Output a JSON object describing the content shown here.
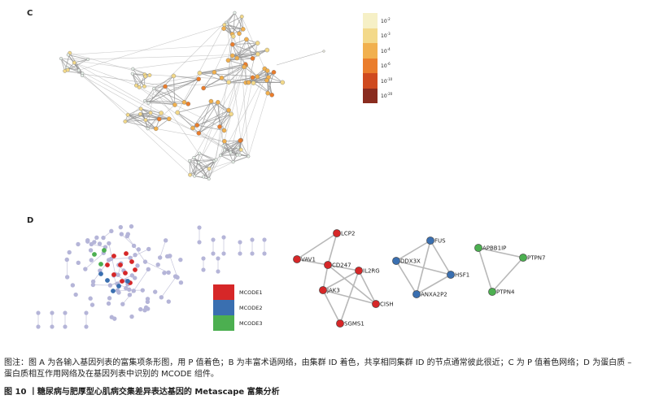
{
  "panels": {
    "c": {
      "label": "C",
      "legend": [
        {
          "base": "10",
          "exp": "-2",
          "color": "#f6f0c6"
        },
        {
          "base": "10",
          "exp": "-3",
          "color": "#f3d98a"
        },
        {
          "base": "10",
          "exp": "-4",
          "color": "#f1b04e"
        },
        {
          "base": "10",
          "exp": "-6",
          "color": "#ea7d2c"
        },
        {
          "base": "10",
          "exp": "-10",
          "color": "#cf4a1f"
        },
        {
          "base": "10",
          "exp": "-20",
          "color": "#8a2c1f"
        }
      ]
    },
    "d": {
      "label": "D",
      "legend": [
        {
          "label": "MCODE1",
          "color": "#d62728"
        },
        {
          "label": "MCODE2",
          "color": "#3a6fb0"
        },
        {
          "label": "MCODE3",
          "color": "#4caf50"
        }
      ],
      "clusters": [
        {
          "name": "MCODE1",
          "color": "#d62728",
          "nodes": [
            "LCP2",
            "VAV1",
            "CD247",
            "IL2RG",
            "JAK3",
            "CISH",
            "SGMS1"
          ],
          "edges": [
            [
              "LCP2",
              "VAV1"
            ],
            [
              "LCP2",
              "CD247"
            ],
            [
              "VAV1",
              "CD247"
            ],
            [
              "CD247",
              "IL2RG"
            ],
            [
              "CD247",
              "JAK3"
            ],
            [
              "CD247",
              "CISH"
            ],
            [
              "IL2RG",
              "JAK3"
            ],
            [
              "IL2RG",
              "CISH"
            ],
            [
              "JAK3",
              "CISH"
            ],
            [
              "JAK3",
              "SGMS1"
            ],
            [
              "IL2RG",
              "SGMS1"
            ]
          ]
        },
        {
          "name": "MCODE2",
          "color": "#3a6fb0",
          "nodes": [
            "FUS",
            "DDX3X",
            "HSF1",
            "ANXA2P2"
          ],
          "edges": [
            [
              "FUS",
              "DDX3X"
            ],
            [
              "FUS",
              "HSF1"
            ],
            [
              "DDX3X",
              "HSF1"
            ],
            [
              "DDX3X",
              "ANXA2P2"
            ],
            [
              "HSF1",
              "ANXA2P2"
            ],
            [
              "FUS",
              "ANXA2P2"
            ]
          ]
        },
        {
          "name": "MCODE3",
          "color": "#4caf50",
          "nodes": [
            "APBB1IP",
            "PTPN7",
            "PTPN4"
          ],
          "edges": [
            [
              "APBB1IP",
              "PTPN7"
            ],
            [
              "APBB1IP",
              "PTPN4"
            ],
            [
              "PTPN7",
              "PTPN4"
            ]
          ]
        }
      ]
    }
  },
  "caption": {
    "note": "图注：图 A 为各输入基因列表的富集项条形图，用 P 值着色；B 为丰富术语网络，由集群 ID 着色，共享相同集群 ID 的节点通常彼此很近；C 为 P 值着色网络；D 为蛋白质 – 蛋白质相互作用网络及在基因列表中识别的 MCODE 组件。",
    "title": "图 10 丨糖尿病与肥厚型心肌病交集差异表达基因的 Metascape 富集分析"
  }
}
